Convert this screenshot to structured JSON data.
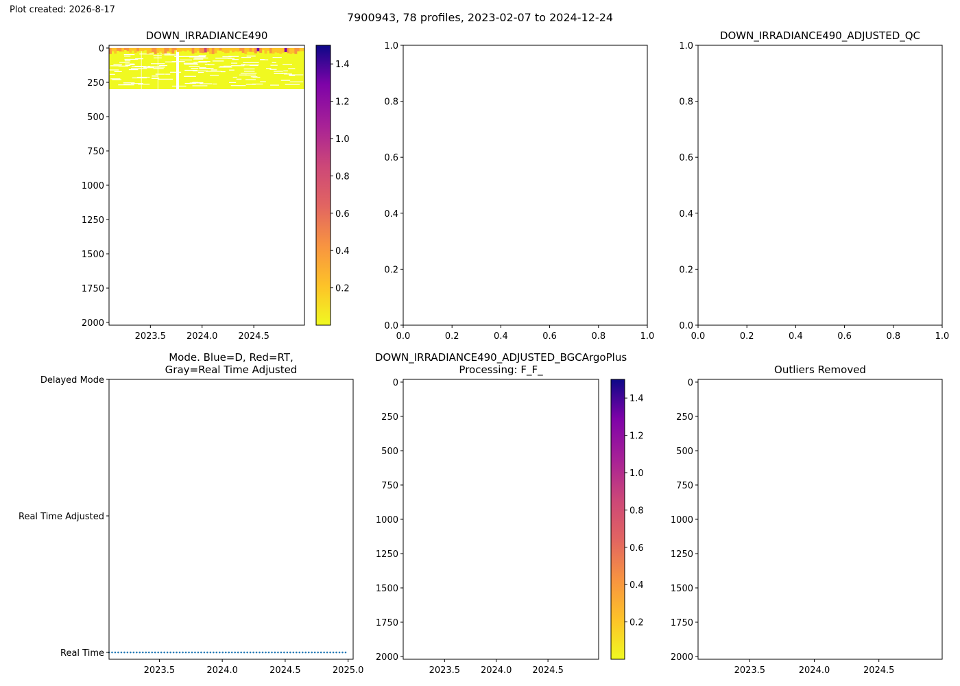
{
  "figure": {
    "created_label": "Plot created: 2026-8-17",
    "suptitle": "7900943, 78 profiles, 2023-02-07 to 2024-12-24"
  },
  "chart_data": [
    {
      "id": "raw",
      "type": "heatmap",
      "title": "DOWN_IRRADIANCE490",
      "xlabel": "",
      "ylabel": "",
      "xlim": [
        2023.1,
        2024.99
      ],
      "ylim": [
        2020,
        -20
      ],
      "y_inverted": true,
      "xticks": [
        2023.5,
        2024.0,
        2024.5
      ],
      "xtick_labels": [
        "2023.5",
        "2024.0",
        "2024.5"
      ],
      "yticks": [
        0,
        250,
        500,
        750,
        1000,
        1250,
        1500,
        1750,
        2000
      ],
      "ytick_labels": [
        "0",
        "250",
        "500",
        "750",
        "1000",
        "1250",
        "1500",
        "1750",
        "2000"
      ],
      "data_extent": {
        "x": [
          2023.1,
          2024.99
        ],
        "depth": [
          0,
          300
        ]
      },
      "colormap": "plasma_r",
      "colorbar": {
        "range": [
          0.0,
          1.5
        ],
        "ticks": [
          0.2,
          0.4,
          0.6,
          0.8,
          1.0,
          1.2,
          1.4
        ],
        "tick_labels": [
          "0.2",
          "0.4",
          "0.6",
          "0.8",
          "1.0",
          "1.2",
          "1.4"
        ]
      }
    },
    {
      "id": "empty1",
      "type": "scatter",
      "title": "",
      "xlabel": "",
      "ylabel": "",
      "xlim": [
        0,
        1
      ],
      "ylim": [
        0,
        1
      ],
      "xticks": [
        0,
        0.2,
        0.4,
        0.6,
        0.8,
        1.0
      ],
      "xtick_labels": [
        "0.0",
        "0.2",
        "0.4",
        "0.6",
        "0.8",
        "1.0"
      ],
      "yticks": [
        0,
        0.2,
        0.4,
        0.6,
        0.8,
        1.0
      ],
      "ytick_labels": [
        "0.0",
        "0.2",
        "0.4",
        "0.6",
        "0.8",
        "1.0"
      ]
    },
    {
      "id": "adjqc",
      "type": "scatter",
      "title": "DOWN_IRRADIANCE490_ADJUSTED_QC",
      "xlabel": "",
      "ylabel": "",
      "xlim": [
        0,
        1
      ],
      "ylim": [
        0,
        1
      ],
      "xticks": [
        0,
        0.2,
        0.4,
        0.6,
        0.8,
        1.0
      ],
      "xtick_labels": [
        "0.0",
        "0.2",
        "0.4",
        "0.6",
        "0.8",
        "1.0"
      ],
      "yticks": [
        0,
        0.2,
        0.4,
        0.6,
        0.8,
        1.0
      ],
      "ytick_labels": [
        "0.0",
        "0.2",
        "0.4",
        "0.6",
        "0.8",
        "1.0"
      ]
    },
    {
      "id": "mode",
      "type": "scatter",
      "title": "Mode. Blue=D, Red=RT,",
      "title_line2": "Gray=Real Time Adjusted",
      "xlabel": "",
      "ylabel": "",
      "xlim": [
        2023.1,
        2025.04
      ],
      "ylim": [
        -0.05,
        2.0
      ],
      "xticks": [
        2023.5,
        2024.0,
        2024.5,
        2025.0
      ],
      "xtick_labels": [
        "2023.5",
        "2024.0",
        "2024.5",
        "2025.0"
      ],
      "yticks": [
        0,
        1,
        2
      ],
      "ytick_labels": [
        "Real Time",
        "Real Time Adjusted",
        "Delayed Mode"
      ],
      "point_color": "#1f77b4",
      "series": [
        {
          "x_start": 2023.1,
          "x_end": 2024.98,
          "count": 78,
          "y": 0
        }
      ]
    },
    {
      "id": "bgcplus",
      "type": "heatmap",
      "title": "DOWN_IRRADIANCE490_ADJUSTED_BGCArgoPlus",
      "title_line2": "Processing: F_F_",
      "xlabel": "",
      "ylabel": "",
      "xlim": [
        2023.1,
        2024.99
      ],
      "ylim": [
        2020,
        -20
      ],
      "y_inverted": true,
      "xticks": [
        2023.5,
        2024.0,
        2024.5
      ],
      "xtick_labels": [
        "2023.5",
        "2024.0",
        "2024.5"
      ],
      "yticks": [
        0,
        250,
        500,
        750,
        1000,
        1250,
        1500,
        1750,
        2000
      ],
      "ytick_labels": [
        "0",
        "250",
        "500",
        "750",
        "1000",
        "1250",
        "1500",
        "1750",
        "2000"
      ],
      "colormap": "plasma_r",
      "colorbar": {
        "range": [
          0.0,
          1.5
        ],
        "ticks": [
          0.2,
          0.4,
          0.6,
          0.8,
          1.0,
          1.2,
          1.4
        ],
        "tick_labels": [
          "0.2",
          "0.4",
          "0.6",
          "0.8",
          "1.0",
          "1.2",
          "1.4"
        ]
      }
    },
    {
      "id": "outliers",
      "type": "heatmap",
      "title": "Outliers Removed",
      "xlabel": "",
      "ylabel": "",
      "xlim": [
        2023.1,
        2024.99
      ],
      "ylim": [
        2020,
        -20
      ],
      "y_inverted": true,
      "xticks": [
        2023.5,
        2024.0,
        2024.5
      ],
      "xtick_labels": [
        "2023.5",
        "2024.0",
        "2024.5"
      ],
      "yticks": [
        0,
        250,
        500,
        750,
        1000,
        1250,
        1500,
        1750,
        2000
      ],
      "ytick_labels": [
        "0",
        "250",
        "500",
        "750",
        "1000",
        "1250",
        "1500",
        "1750",
        "2000"
      ]
    }
  ]
}
